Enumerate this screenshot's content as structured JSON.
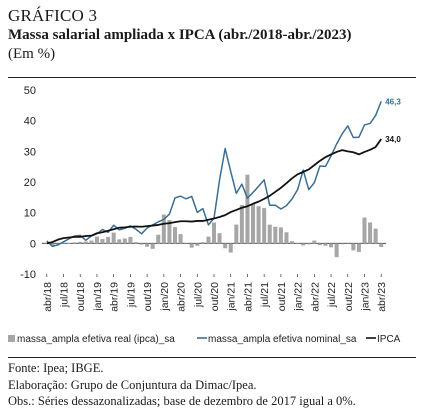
{
  "header": {
    "label": "GRÁFICO 3",
    "title": "Massa salarial ampliada x IPCA (abr./2018-abr./2023)",
    "units": "(Em %)"
  },
  "footer": {
    "source": "Fonte: Ipea; IBGE.",
    "elaboration": "Elaboração: Grupo de Conjuntura da Dimac/Ipea.",
    "notes": "Obs.: Séries dessazonalizadas; base de dezembro de 2017 igual a 0%."
  },
  "chart_data": {
    "type": "bar+line",
    "categories": [
      "abr/18",
      "mai/18",
      "jun/18",
      "jul/18",
      "ago/18",
      "set/18",
      "out/18",
      "nov/18",
      "dez/18",
      "jan/19",
      "fev/19",
      "mar/19",
      "abr/19",
      "mai/19",
      "jun/19",
      "jul/19",
      "ago/19",
      "set/19",
      "out/19",
      "nov/19",
      "dez/19",
      "jan/20",
      "fev/20",
      "mar/20",
      "abr/20",
      "mai/20",
      "jun/20",
      "jul/20",
      "ago/20",
      "set/20",
      "out/20",
      "nov/20",
      "dez/20",
      "jan/21",
      "fev/21",
      "mar/21",
      "abr/21",
      "mai/21",
      "jun/21",
      "jul/21",
      "ago/21",
      "set/21",
      "out/21",
      "nov/21",
      "dez/21",
      "jan/22",
      "fev/22",
      "mar/22",
      "abr/22",
      "mai/22",
      "jun/22",
      "jul/22",
      "ago/22",
      "set/22",
      "out/22",
      "nov/22",
      "dez/22",
      "jan/23",
      "fev/23",
      "mar/23",
      "abr/23"
    ],
    "tick_labels": [
      "abr/18",
      "jul/18",
      "out/18",
      "jan/19",
      "abr/19",
      "jul/19",
      "out/19",
      "jan/20",
      "abr/20",
      "jul/20",
      "out/20",
      "jan/21",
      "abr/21",
      "jul/21",
      "out/21",
      "jan/22",
      "abr/22",
      "jul/22",
      "out/22",
      "jan/23",
      "abr/23"
    ],
    "ylim": [
      -10,
      50
    ],
    "yticks": [
      -10,
      0,
      10,
      20,
      30,
      40,
      50
    ],
    "series": [
      {
        "name": "massa_ampla efetiva real (ipca)_sa",
        "kind": "bar",
        "color": "#a6a6a6",
        "values": [
          0.2,
          -0.8,
          -0.3,
          0.2,
          0.1,
          0.3,
          0.5,
          0.6,
          0.9,
          2.2,
          1.4,
          2.1,
          3.5,
          1.3,
          1.6,
          2.1,
          0.4,
          -0.4,
          -1.1,
          -1.8,
          2.8,
          9.4,
          7.6,
          5.3,
          3.0,
          -0.2,
          -1.4,
          -0.8,
          0.4,
          2.2,
          6.8,
          3.3,
          -1.6,
          -3.0,
          6.1,
          12.5,
          22.4,
          13.0,
          12.1,
          11.5,
          6.1,
          5.4,
          5.2,
          3.6,
          0.7,
          -0.2,
          -0.7,
          -0.3,
          0.9,
          -0.6,
          -0.8,
          -1.3,
          -4.5,
          -0.3,
          -0.1,
          -2.3,
          -2.8,
          8.4,
          6.8,
          4.8,
          -1.2
        ]
      },
      {
        "name": "massa_ampla efetiva nominal_sa",
        "kind": "line",
        "color": "#3a6f94",
        "values": [
          0.8,
          -1.0,
          -0.5,
          0.5,
          1.5,
          2.4,
          2.6,
          1.0,
          2.4,
          3.1,
          4.5,
          3.6,
          5.9,
          4.4,
          4.9,
          5.7,
          4.6,
          3.1,
          5.0,
          6.0,
          7.0,
          7.8,
          9.5,
          14.8,
          15.4,
          14.5,
          15.3,
          10.1,
          11.3,
          6.0,
          8.2,
          20.7,
          30.9,
          23.4,
          16.3,
          19.3,
          14.7,
          16.6,
          18.6,
          20.7,
          12.4,
          12.4,
          11.2,
          12.3,
          14.5,
          17.5,
          23.9,
          17.5,
          19.8,
          25.2,
          25.1,
          28.5,
          32.4,
          35.7,
          38.3,
          34.5,
          34.6,
          38.6,
          39.1,
          41.7,
          46.3
        ]
      },
      {
        "name": "IPCA",
        "kind": "line",
        "color": "#111111",
        "values": [
          0.0,
          0.4,
          1.2,
          1.7,
          1.9,
          2.1,
          2.1,
          2.4,
          2.5,
          3.3,
          3.6,
          4.1,
          4.6,
          5.1,
          5.2,
          5.4,
          5.5,
          5.4,
          5.6,
          5.8,
          6.0,
          6.4,
          6.6,
          6.9,
          7.2,
          7.2,
          7.1,
          7.3,
          7.3,
          7.7,
          8.1,
          8.6,
          9.2,
          10.2,
          10.9,
          11.6,
          12.1,
          12.9,
          13.6,
          14.5,
          15.5,
          16.8,
          18.1,
          19.6,
          21.2,
          22.5,
          23.3,
          24.1,
          25.5,
          26.9,
          28.1,
          29.0,
          29.8,
          30.4,
          30.0,
          29.7,
          29.0,
          29.8,
          30.5,
          31.4,
          34.0
        ]
      }
    ],
    "annotations": [
      {
        "series": "massa_ampla efetiva nominal_sa",
        "text": "46,3"
      },
      {
        "series": "IPCA",
        "text": "34,0"
      }
    ],
    "legend": {
      "placement": "bottom",
      "items": [
        "massa_ampla efetiva real (ipca)_sa",
        "massa_ampla efetiva nominal_sa",
        "IPCA"
      ]
    },
    "grid": false
  }
}
